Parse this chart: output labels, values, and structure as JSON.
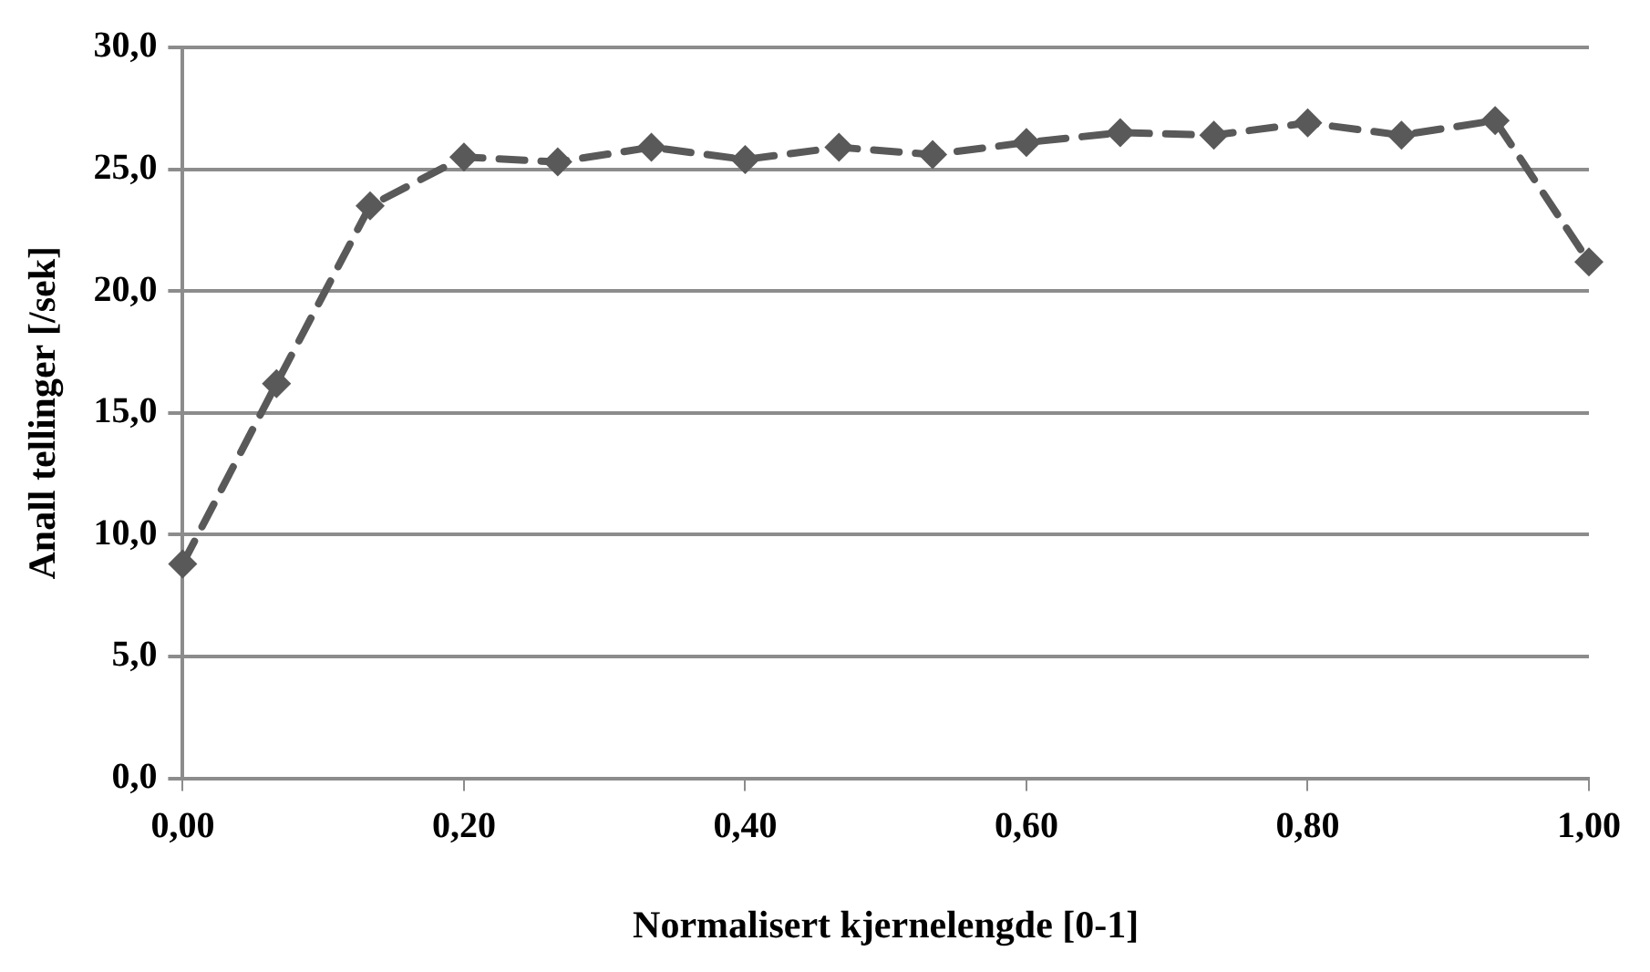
{
  "chart_data": {
    "type": "line",
    "xlabel": "Normalisert kjernelengde [0-1]",
    "ylabel": "Anall tellinger [/sek]",
    "x": [
      0,
      0.0667,
      0.1333,
      0.2,
      0.2667,
      0.3333,
      0.4,
      0.4667,
      0.5333,
      0.6,
      0.6667,
      0.7333,
      0.8,
      0.8667,
      0.9333,
      1.0
    ],
    "series": [
      {
        "color": "#595959",
        "values": [
          8.8,
          16.2,
          23.5,
          25.5,
          25.3,
          25.9,
          25.4,
          25.9,
          25.6,
          26.1,
          26.5,
          26.4,
          26.9,
          26.4,
          27.0,
          21.2
        ]
      }
    ],
    "xlim": [
      0,
      1
    ],
    "xticks": [
      {
        "value": 0,
        "label": "0,00"
      },
      {
        "value": 0.2,
        "label": "0,20"
      },
      {
        "value": 0.4,
        "label": "0,40"
      },
      {
        "value": 0.6,
        "label": "0,60"
      },
      {
        "value": 0.8,
        "label": "0,80"
      },
      {
        "value": 1,
        "label": "1,00"
      }
    ],
    "ylim": [
      0,
      30
    ],
    "yticks": [
      {
        "value": 0,
        "label": "0,0"
      },
      {
        "value": 5,
        "label": "5,0"
      },
      {
        "value": 10,
        "label": "10,0"
      },
      {
        "value": 15,
        "label": "15,0"
      },
      {
        "value": 20,
        "label": "20,0"
      },
      {
        "value": 25,
        "label": "25,0"
      },
      {
        "value": 30,
        "label": "30,0"
      }
    ],
    "grid": "y",
    "legend": false,
    "marker": "diamond",
    "line_style": "dashed"
  }
}
